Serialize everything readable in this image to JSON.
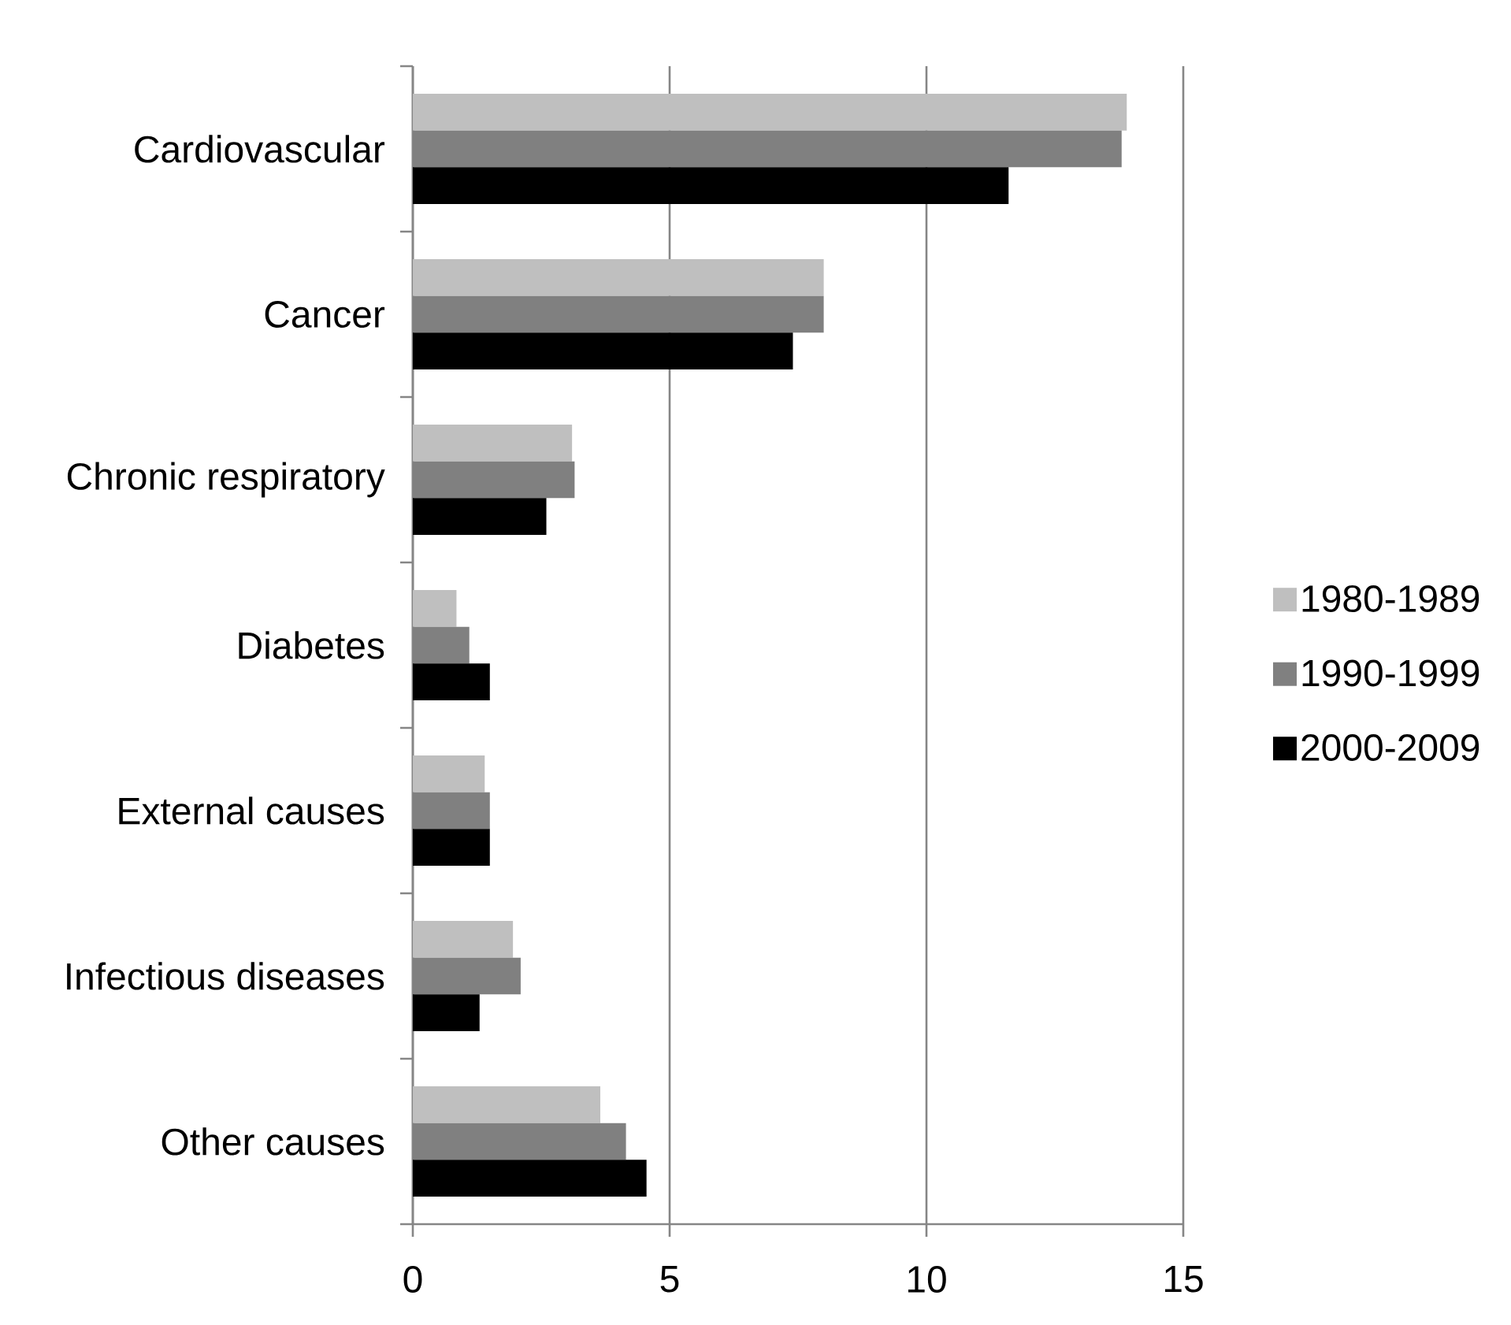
{
  "chart_data": {
    "type": "bar",
    "orientation": "horizontal",
    "categories": [
      "Cardiovascular",
      "Cancer",
      "Chronic respiratory",
      "Diabetes",
      "External causes",
      "Infectious diseases",
      "Other causes"
    ],
    "series": [
      {
        "name": "1980-1989",
        "color": "#bfbfbf",
        "values": [
          13.9,
          8.0,
          3.1,
          0.85,
          1.4,
          1.95,
          3.65
        ]
      },
      {
        "name": "1990-1999",
        "color": "#808080",
        "values": [
          13.8,
          8.0,
          3.15,
          1.1,
          1.5,
          2.1,
          4.15
        ]
      },
      {
        "name": "2000-2009",
        "color": "#000000",
        "values": [
          11.6,
          7.4,
          2.6,
          1.5,
          1.5,
          1.3,
          4.55
        ]
      }
    ],
    "xlim": [
      0,
      15
    ],
    "xticks": [
      0,
      5,
      10,
      15
    ],
    "grid": "x",
    "legend": "right"
  }
}
